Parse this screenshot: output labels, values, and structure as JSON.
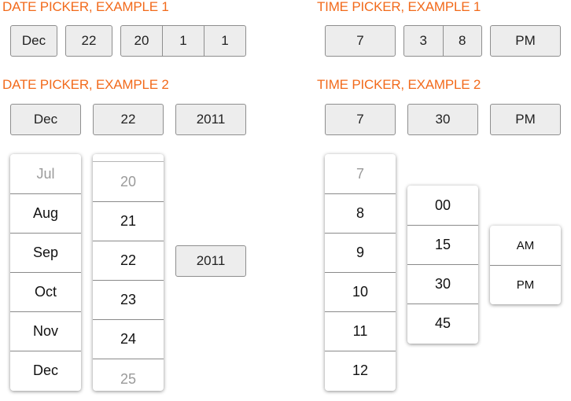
{
  "date_example_1": {
    "heading": "DATE PICKER, EXAMPLE 1",
    "month": "Dec",
    "day": "22",
    "year_parts": [
      "20",
      "1",
      "1"
    ]
  },
  "time_example_1": {
    "heading": "TIME PICKER, EXAMPLE 1",
    "hour": "7",
    "minute_parts": [
      "3",
      "8"
    ],
    "meridiem": "PM"
  },
  "date_example_2": {
    "heading": "DATE PICKER, EXAMPLE 2",
    "month": "Dec",
    "day": "22",
    "year": "2011",
    "month_options": [
      "Jul",
      "Aug",
      "Sep",
      "Oct",
      "Nov",
      "Dec"
    ],
    "day_options": [
      "20",
      "21",
      "22",
      "23",
      "24",
      "25"
    ],
    "year_button": "2011"
  },
  "time_example_2": {
    "heading": "TIME PICKER, EXAMPLE 2",
    "hour": "7",
    "minute": "30",
    "meridiem": "PM",
    "hour_options": [
      "7",
      "8",
      "9",
      "10",
      "11",
      "12"
    ],
    "minute_options": [
      "00",
      "15",
      "30",
      "45"
    ],
    "meridiem_options": [
      "AM",
      "PM"
    ]
  },
  "colors": {
    "heading": "#f26a1b",
    "button_fill": "#ededed",
    "button_border": "#8e8e8e",
    "faded_option": "#9a9a9a"
  }
}
